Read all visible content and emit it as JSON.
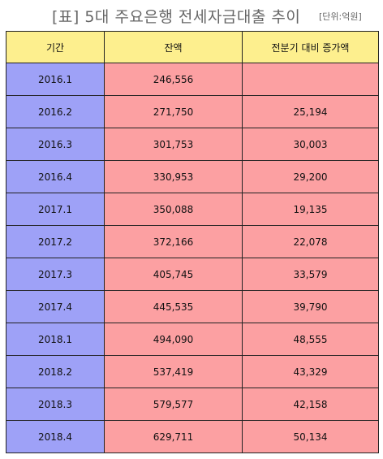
{
  "title": "[표] 5대 주요은행 전세자금대출 추이",
  "unit": "[단위:억원]",
  "colors": {
    "header": "#fdef8e",
    "period_col": "#9ea1f7",
    "value_cols": "#fca0a2"
  },
  "chart_data": {
    "type": "table",
    "title": "[표] 5대 주요은행 전세자금대출 추이",
    "unit": "[단위:억원]",
    "columns": [
      "기간",
      "잔액",
      "전분기 대비 증가액"
    ],
    "rows": [
      [
        "2016.1",
        "246,556",
        ""
      ],
      [
        "2016.2",
        "271,750",
        "25,194"
      ],
      [
        "2016.3",
        "301,753",
        "30,003"
      ],
      [
        "2016.4",
        "330,953",
        "29,200"
      ],
      [
        "2017.1",
        "350,088",
        "19,135"
      ],
      [
        "2017.2",
        "372,166",
        "22,078"
      ],
      [
        "2017.3",
        "405,745",
        "33,579"
      ],
      [
        "2017.4",
        "445,535",
        "39,790"
      ],
      [
        "2018.1",
        "494,090",
        "48,555"
      ],
      [
        "2018.2",
        "537,419",
        "43,329"
      ],
      [
        "2018.3",
        "579,577",
        "42,158"
      ],
      [
        "2018.4",
        "629,711",
        "50,134"
      ]
    ]
  }
}
